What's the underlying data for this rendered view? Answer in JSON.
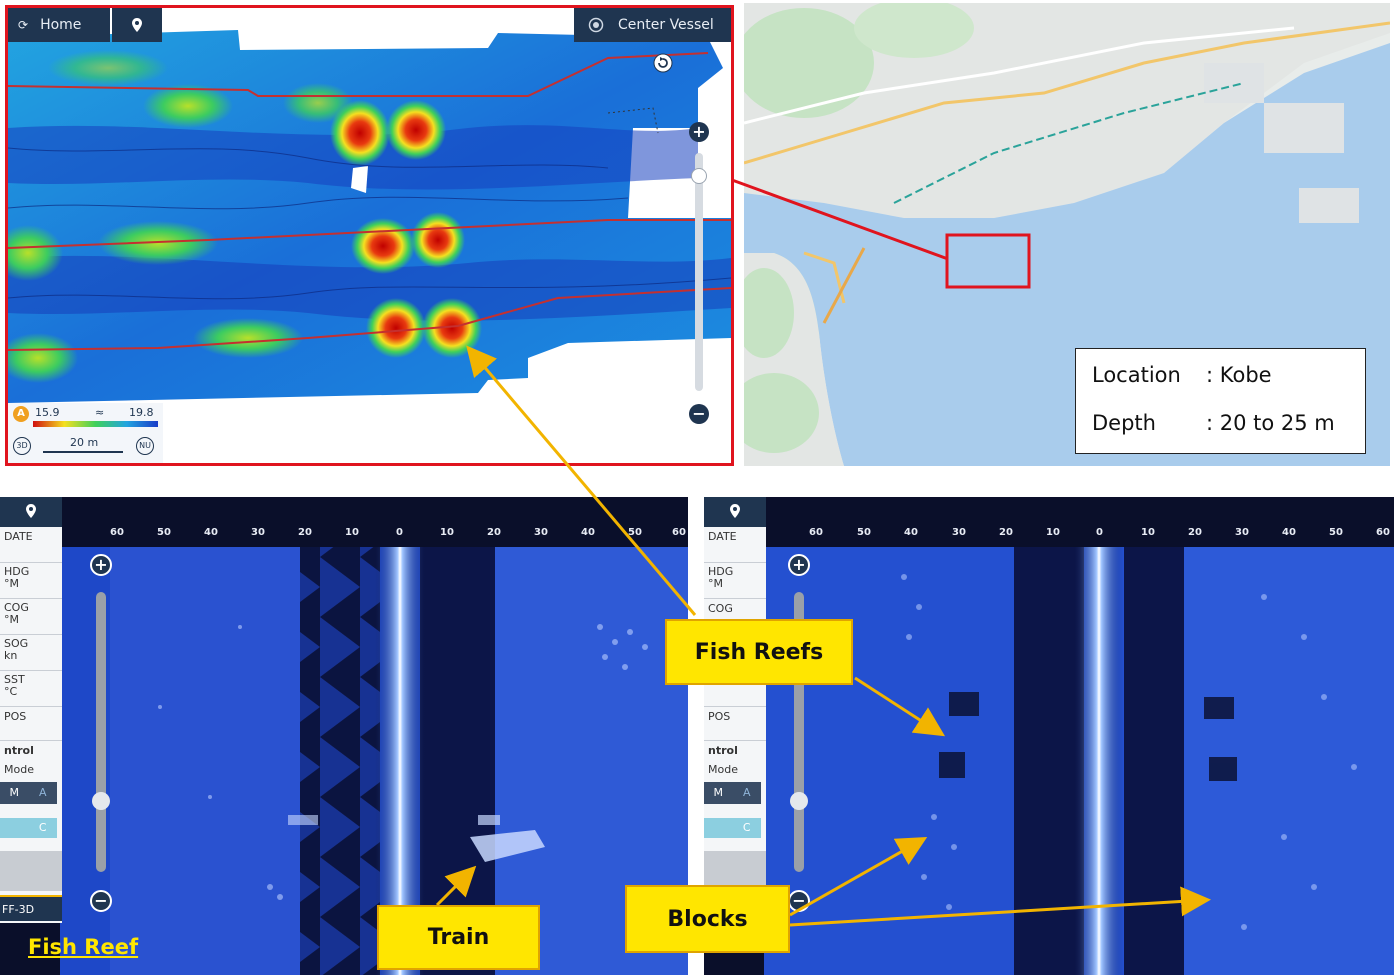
{
  "bathy": {
    "home_label": "Home",
    "center_vessel_label": "Center Vessel",
    "legend_min": "15.9",
    "legend_sep": "≈",
    "legend_max": "19.8",
    "legend_badge": "A",
    "scale_text": "20 m",
    "btn_3d": "3D",
    "btn_nu": "NU"
  },
  "info": {
    "location_label": "Location",
    "location_value": ": Kobe",
    "depth_label": "Depth",
    "depth_value": ": 20 to 25 m"
  },
  "sonar": {
    "scale_ticks": [
      "60",
      "50",
      "40",
      "30",
      "20",
      "10",
      "0",
      "10",
      "20",
      "30",
      "40",
      "50",
      "60"
    ],
    "left_panel": {
      "rows": [
        "DATE",
        "HDG\n°M",
        "COG\n°M",
        "SOG\nkn",
        "SST\n°C",
        "POS"
      ],
      "control": "ntrol",
      "mode": "Mode",
      "mode_m": "M",
      "mode_a": "A",
      "c_btn": "C",
      "ff3d": "FF-3D"
    },
    "right_panel": {
      "rows": [
        "DATE",
        "HDG\n°M",
        "COG",
        "",
        "°C",
        "POS"
      ],
      "control": "ntrol",
      "mode": "Mode",
      "mode_m": "M",
      "mode_a": "A",
      "c_btn": "C"
    }
  },
  "callouts": {
    "fish_reefs": "Fish Reefs",
    "train": "Train",
    "blocks": "Blocks"
  },
  "caption": "Fish Reef",
  "colors": {
    "highlight_red": "#e0141e",
    "callout_yellow": "#ffe600",
    "arrow_orange": "#f2b400",
    "ui_navy": "#1f3550"
  }
}
